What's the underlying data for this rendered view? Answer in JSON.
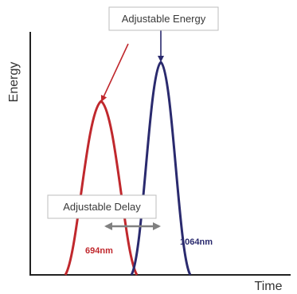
{
  "axes": {
    "y_label": "Energy",
    "x_label": "Time"
  },
  "callouts": {
    "energy": "Adjustable Energy",
    "delay": "Adjustable Delay"
  },
  "pulses": [
    {
      "label": "694nm",
      "color": "#c0282d"
    },
    {
      "label": "1064nm",
      "color": "#2a2a6e"
    }
  ],
  "colors": {
    "axis": "#222222",
    "arrow_gray": "#808080",
    "box_border": "#bdbdbd"
  }
}
